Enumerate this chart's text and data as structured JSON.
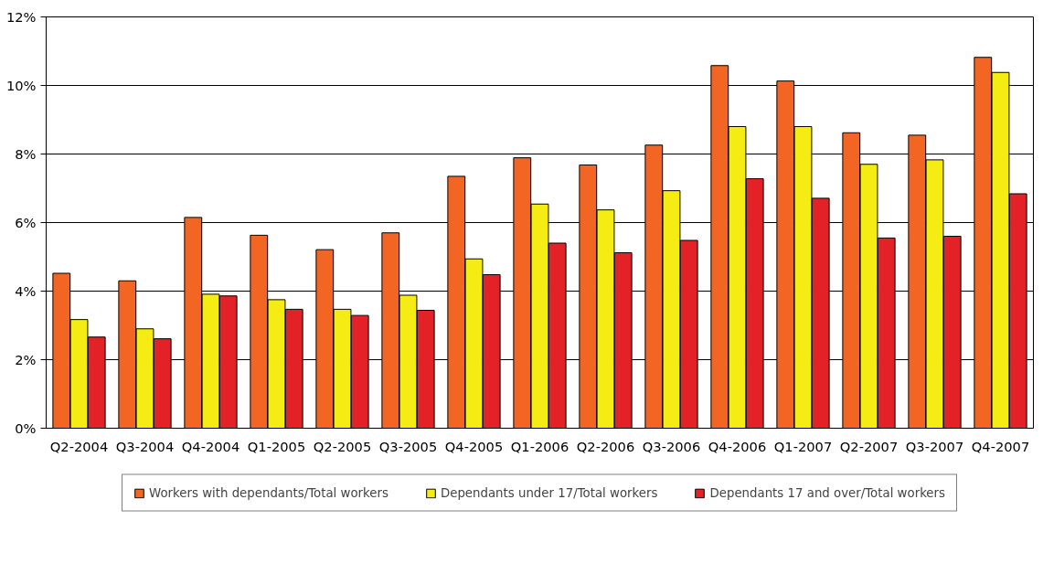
{
  "chart_data": {
    "type": "bar",
    "categories": [
      "Q2-2004",
      "Q3-2004",
      "Q4-2004",
      "Q1-2005",
      "Q2-2005",
      "Q3-2005",
      "Q4-2005",
      "Q1-2006",
      "Q2-2006",
      "Q3-2006",
      "Q4-2006",
      "Q1-2007",
      "Q2-2007",
      "Q3-2007",
      "Q4-2007"
    ],
    "series": [
      {
        "name": "Workers with dependants/Total workers",
        "color": "#f26522",
        "values": [
          4.52,
          4.3,
          6.15,
          5.63,
          5.21,
          5.7,
          7.35,
          7.89,
          7.68,
          8.26,
          10.58,
          10.13,
          8.62,
          8.55,
          10.82
        ]
      },
      {
        "name": "Dependants under 17/Total workers",
        "color": "#f5ec13",
        "values": [
          3.17,
          2.9,
          3.91,
          3.75,
          3.47,
          3.88,
          4.94,
          6.54,
          6.37,
          6.93,
          8.8,
          8.8,
          7.7,
          7.83,
          10.38
        ]
      },
      {
        "name": "Dependants 17 and over/Total workers",
        "color": "#e32228",
        "values": [
          2.66,
          2.61,
          3.86,
          3.47,
          3.29,
          3.44,
          4.48,
          5.4,
          5.12,
          5.48,
          7.28,
          6.71,
          5.55,
          5.6,
          6.84
        ]
      }
    ],
    "ylim": [
      0,
      12
    ],
    "yticks": [
      {
        "value": 0,
        "label": "0%"
      },
      {
        "value": 2,
        "label": "2%"
      },
      {
        "value": 4,
        "label": "4%"
      },
      {
        "value": 6,
        "label": "6%"
      },
      {
        "value": 8,
        "label": "8%"
      },
      {
        "value": 10,
        "label": "10%"
      },
      {
        "value": 12,
        "label": "12%"
      }
    ],
    "grid": "y",
    "legend": "bottom"
  }
}
